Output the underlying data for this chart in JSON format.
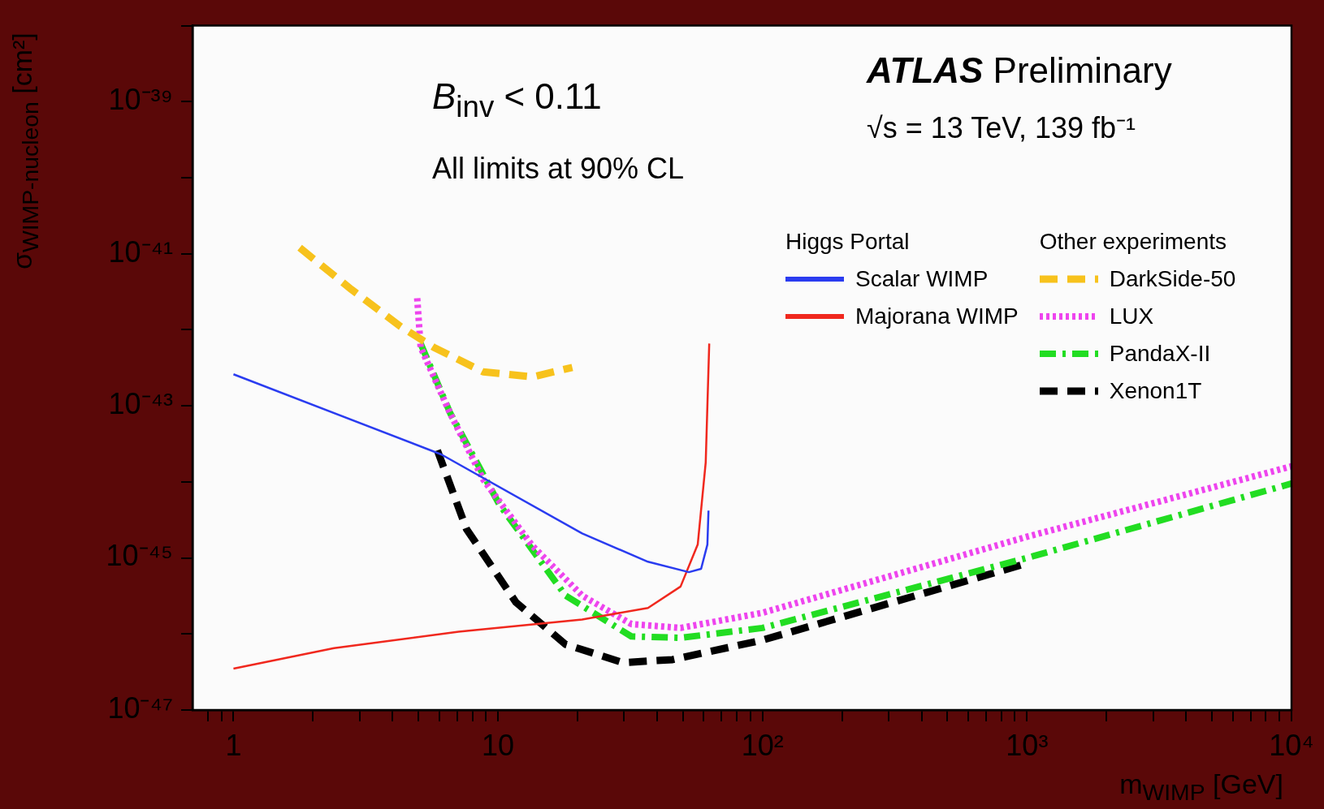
{
  "chart_data": {
    "type": "line",
    "xlabel": "m$_{WIMP}$ [GeV]",
    "ylabel": "σ$_{WIMP-nucleon}$ [cm²]",
    "annotations": [
      "ATLAS Preliminary",
      "√s = 13 TeV, 139 fb⁻¹",
      "B$_{inv}$ < 0.11",
      "All limits at 90% CL",
      "Higgs Portal",
      "Other experiments"
    ],
    "log": "xy",
    "xlim": [
      0.7,
      10000
    ],
    "ylim": [
      1e-47,
      1e-38
    ],
    "xticks": [
      {
        "value": 0.8,
        "label": null
      },
      {
        "value": 0.9,
        "label": null
      },
      {
        "value": 1,
        "label": "1"
      },
      {
        "value": 2,
        "label": null
      },
      {
        "value": 3,
        "label": null
      },
      {
        "value": 4,
        "label": null
      },
      {
        "value": 5,
        "label": null
      },
      {
        "value": 6,
        "label": null
      },
      {
        "value": 7,
        "label": null
      },
      {
        "value": 8,
        "label": null
      },
      {
        "value": 9,
        "label": null
      },
      {
        "value": 10,
        "label": "10"
      },
      {
        "value": 20,
        "label": null
      },
      {
        "value": 30,
        "label": null
      },
      {
        "value": 40,
        "label": null
      },
      {
        "value": 50,
        "label": null
      },
      {
        "value": 60,
        "label": null
      },
      {
        "value": 70,
        "label": null
      },
      {
        "value": 80,
        "label": null
      },
      {
        "value": 90,
        "label": null
      },
      {
        "value": 100,
        "label": "10²"
      },
      {
        "value": 200,
        "label": null
      },
      {
        "value": 300,
        "label": null
      },
      {
        "value": 400,
        "label": null
      },
      {
        "value": 500,
        "label": null
      },
      {
        "value": 600,
        "label": null
      },
      {
        "value": 700,
        "label": null
      },
      {
        "value": 800,
        "label": null
      },
      {
        "value": 900,
        "label": null
      },
      {
        "value": 1000,
        "label": "10³"
      },
      {
        "value": 2000,
        "label": null
      },
      {
        "value": 3000,
        "label": null
      },
      {
        "value": 4000,
        "label": null
      },
      {
        "value": 5000,
        "label": null
      },
      {
        "value": 6000,
        "label": null
      },
      {
        "value": 7000,
        "label": null
      },
      {
        "value": 8000,
        "label": null
      },
      {
        "value": 9000,
        "label": null
      },
      {
        "value": 10000,
        "label": "10⁴"
      }
    ],
    "yticks": [
      {
        "value": 1e-47,
        "label": "10⁻⁴⁷"
      },
      {
        "value": 1e-46,
        "label": null
      },
      {
        "value": 1e-45,
        "label": "10⁻⁴⁵"
      },
      {
        "value": 1e-44,
        "label": null
      },
      {
        "value": 1e-43,
        "label": "10⁻⁴³"
      },
      {
        "value": 1e-42,
        "label": null
      },
      {
        "value": 1e-41,
        "label": "10⁻⁴¹"
      },
      {
        "value": 1e-40,
        "label": null
      },
      {
        "value": 1e-39,
        "label": "10⁻³⁹"
      },
      {
        "value": 1e-38,
        "label": null
      }
    ],
    "legend": "top right",
    "marker": "none",
    "series": [
      {
        "name": "Scalar WIMP",
        "color": "#2a3cf0",
        "line_style": "solid",
        "x": [
          1,
          6.1,
          20.8,
          36.9,
          52.7,
          58.6,
          61.9,
          62.5
        ],
        "values": [
          2.6e-43,
          2.3e-44,
          2.1e-45,
          8.9e-46,
          6.5e-46,
          7.2e-46,
          1.5e-45,
          4.2e-45
        ]
      },
      {
        "name": "Majorana WIMP",
        "color": "#f0281e",
        "line_style": "solid",
        "x": [
          1,
          2.4,
          7.1,
          20.8,
          36.9,
          49,
          56.9,
          61,
          62.9
        ],
        "values": [
          3.5e-47,
          6.5e-47,
          1.07e-46,
          1.55e-46,
          2.2e-46,
          4.2e-46,
          1.5e-45,
          1.8e-44,
          6.6e-43
        ]
      },
      {
        "name": "DarkSide-50",
        "color": "#f7c21c",
        "line_style": "dashed",
        "x": [
          1.78,
          2.79,
          4.29,
          5.71,
          8.79,
          13.5,
          19.1
        ],
        "values": [
          1.2e-41,
          3.4e-42,
          1.1e-42,
          5.9e-43,
          2.8e-43,
          2.4e-43,
          3.2e-43
        ]
      },
      {
        "name": "LUX",
        "color": "#ee44ee",
        "line_style": "dotted",
        "x": [
          4.95,
          5.1,
          6.6,
          8.8,
          13.5,
          20.8,
          31.9,
          49,
          100,
          1000,
          10000
        ],
        "values": [
          2.6e-42,
          5.9e-43,
          7.9e-44,
          1.07e-44,
          1.44e-45,
          3.2e-46,
          1.35e-46,
          1.2e-46,
          1.9e-46,
          1.9e-45,
          1.6e-44
        ]
      },
      {
        "name": "PandaX-II",
        "color": "#22dd22",
        "line_style": "dashdot",
        "x": [
          5.1,
          6.6,
          10.1,
          18,
          31.9,
          49,
          100,
          1000,
          10000
        ],
        "values": [
          6.6e-43,
          8e-44,
          5.1e-45,
          3.2e-46,
          9.3e-47,
          8.9e-47,
          1.2e-46,
          1e-45,
          9.5e-45
        ]
      },
      {
        "name": "Xenon1T",
        "color": "#000000",
        "line_style": "dashed",
        "x": [
          5.9,
          7.6,
          11.7,
          18,
          29.7,
          45.7,
          100,
          1000
        ],
        "values": [
          2.6e-44,
          2.4e-45,
          2.6e-46,
          7.3e-47,
          4.2e-47,
          4.6e-47,
          8.3e-47,
          8.5e-46
        ]
      }
    ]
  }
}
